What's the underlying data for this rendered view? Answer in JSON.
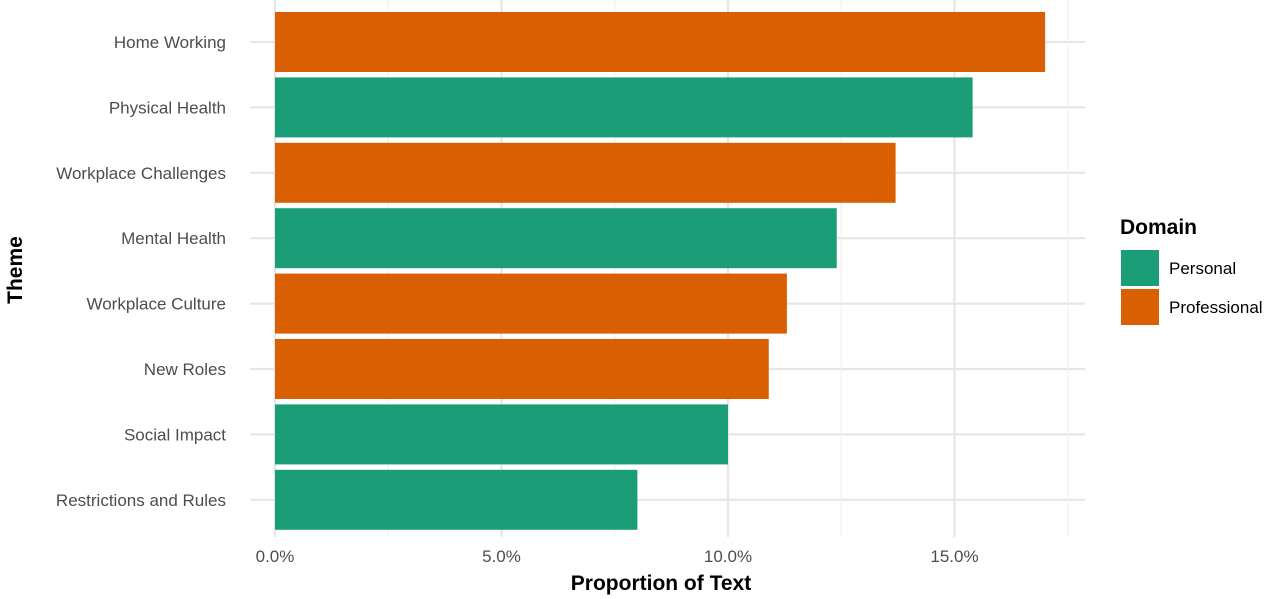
{
  "chart_data": {
    "type": "bar",
    "orientation": "horizontal",
    "xlabel": "Proportion of Text",
    "ylabel": "Theme",
    "xlim": [
      0,
      17.5
    ],
    "x_ticks": [
      0,
      5,
      10,
      15
    ],
    "x_tick_labels": [
      "0.0%",
      "5.0%",
      "10.0%",
      "15.0%"
    ],
    "grid": true,
    "legend": {
      "title": "Domain",
      "position": "right",
      "entries": [
        {
          "label": "Personal",
          "color": "#1b9e77"
        },
        {
          "label": "Professional",
          "color": "#d95f02"
        }
      ]
    },
    "categories": [
      "Home Working",
      "Physical Health",
      "Workplace Challenges",
      "Mental Health",
      "Workplace Culture",
      "New Roles",
      "Social Impact",
      "Restrictions and Rules"
    ],
    "values": [
      17.0,
      15.4,
      13.7,
      12.4,
      11.3,
      10.9,
      10.0,
      8.0
    ],
    "domains": [
      "Professional",
      "Personal",
      "Professional",
      "Personal",
      "Professional",
      "Professional",
      "Personal",
      "Personal"
    ],
    "colors": {
      "Personal": "#1b9e77",
      "Professional": "#d95f02"
    }
  }
}
